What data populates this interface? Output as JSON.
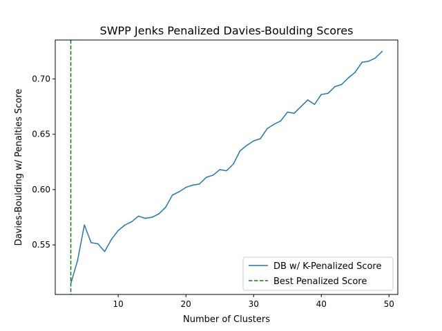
{
  "chart_data": {
    "type": "line",
    "title": "SWPP Jenks Penalized Davies-Boulding Scores",
    "xlabel": "Number of Clusters",
    "ylabel": "Davies-Boulding w/ Penalties Score",
    "xlim": [
      0.7,
      51.3
    ],
    "ylim": [
      0.5052,
      0.7352
    ],
    "xticks": [
      10,
      20,
      30,
      40,
      50
    ],
    "xtick_labels": [
      "10",
      "20",
      "30",
      "40",
      "50"
    ],
    "yticks": [
      0.55,
      0.6,
      0.65,
      0.7
    ],
    "ytick_labels": [
      "0.55",
      "0.60",
      "0.65",
      "0.70"
    ],
    "grid": false,
    "legend_position": "lower right",
    "series": [
      {
        "name": "DB w/ K-Penalized Score",
        "style": "solid",
        "color": "#1f77b4",
        "x": [
          3,
          4,
          5,
          6,
          7,
          8,
          9,
          10,
          11,
          12,
          13,
          14,
          15,
          16,
          17,
          18,
          19,
          20,
          21,
          22,
          23,
          24,
          25,
          26,
          27,
          28,
          29,
          30,
          31,
          32,
          33,
          34,
          35,
          36,
          37,
          38,
          39,
          40,
          41,
          42,
          43,
          44,
          45,
          46,
          47,
          48,
          49
        ],
        "y": [
          0.515,
          0.536,
          0.568,
          0.552,
          0.551,
          0.544,
          0.555,
          0.563,
          0.568,
          0.571,
          0.576,
          0.574,
          0.575,
          0.578,
          0.584,
          0.595,
          0.598,
          0.602,
          0.604,
          0.605,
          0.611,
          0.613,
          0.618,
          0.617,
          0.623,
          0.635,
          0.64,
          0.644,
          0.646,
          0.655,
          0.659,
          0.662,
          0.67,
          0.669,
          0.675,
          0.681,
          0.677,
          0.686,
          0.687,
          0.693,
          0.695,
          0.701,
          0.706,
          0.715,
          0.716,
          0.719,
          0.725
        ]
      },
      {
        "name": "Best Penalized Score",
        "style": "dashed",
        "color": "#008000",
        "vline_x": 3
      }
    ]
  }
}
